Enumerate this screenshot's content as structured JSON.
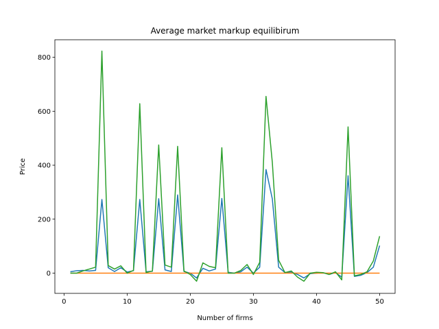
{
  "chart_data": {
    "type": "line",
    "title": "Average market markup equilibirum",
    "xlabel": "Number of firms",
    "ylabel": "Price",
    "xlim": [
      -1.45,
      52.45
    ],
    "ylim": [
      -75,
      865
    ],
    "xticks": [
      0,
      10,
      20,
      30,
      40,
      50
    ],
    "yticks": [
      0,
      200,
      400,
      600,
      800
    ],
    "grid": false,
    "legend": "none",
    "x": [
      1,
      2,
      3,
      4,
      5,
      6,
      7,
      8,
      9,
      10,
      11,
      12,
      13,
      14,
      15,
      16,
      17,
      18,
      19,
      20,
      21,
      22,
      23,
      24,
      25,
      26,
      27,
      28,
      29,
      30,
      31,
      32,
      33,
      34,
      35,
      36,
      37,
      38,
      39,
      40,
      41,
      42,
      43,
      44,
      45,
      46,
      47,
      48,
      49,
      50
    ],
    "series": [
      {
        "color": "#1f77b4",
        "values": [
          5,
          9,
          10,
          8,
          10,
          273,
          20,
          6,
          20,
          4,
          9,
          273,
          5,
          7,
          276,
          12,
          6,
          290,
          6,
          0,
          -18,
          18,
          8,
          15,
          277,
          3,
          0,
          5,
          22,
          0,
          22,
          384,
          275,
          22,
          2,
          4,
          -5,
          -18,
          -2,
          0,
          2,
          -5,
          2,
          -15,
          361,
          -12,
          -8,
          2,
          22,
          102
        ]
      },
      {
        "color": "#ff7f0e",
        "values": [
          0,
          0,
          0,
          0,
          0,
          0,
          0,
          0,
          0,
          0,
          0,
          0,
          0,
          0,
          0,
          0,
          0,
          0,
          0,
          0,
          0,
          0,
          0,
          0,
          0,
          0,
          0,
          0,
          0,
          0,
          0,
          0,
          0,
          0,
          0,
          0,
          0,
          0,
          0,
          0,
          0,
          0,
          0,
          0,
          0,
          0,
          0,
          0,
          0,
          0
        ]
      },
      {
        "color": "#2ca02c",
        "values": [
          0,
          0,
          8,
          15,
          22,
          823,
          28,
          15,
          27,
          0,
          10,
          628,
          2,
          8,
          475,
          30,
          22,
          470,
          8,
          -5,
          -30,
          38,
          25,
          20,
          465,
          0,
          0,
          10,
          32,
          -5,
          40,
          655,
          410,
          48,
          2,
          8,
          -15,
          -30,
          0,
          3,
          2,
          -5,
          5,
          -25,
          542,
          -10,
          -5,
          5,
          45,
          137
        ]
      }
    ]
  }
}
